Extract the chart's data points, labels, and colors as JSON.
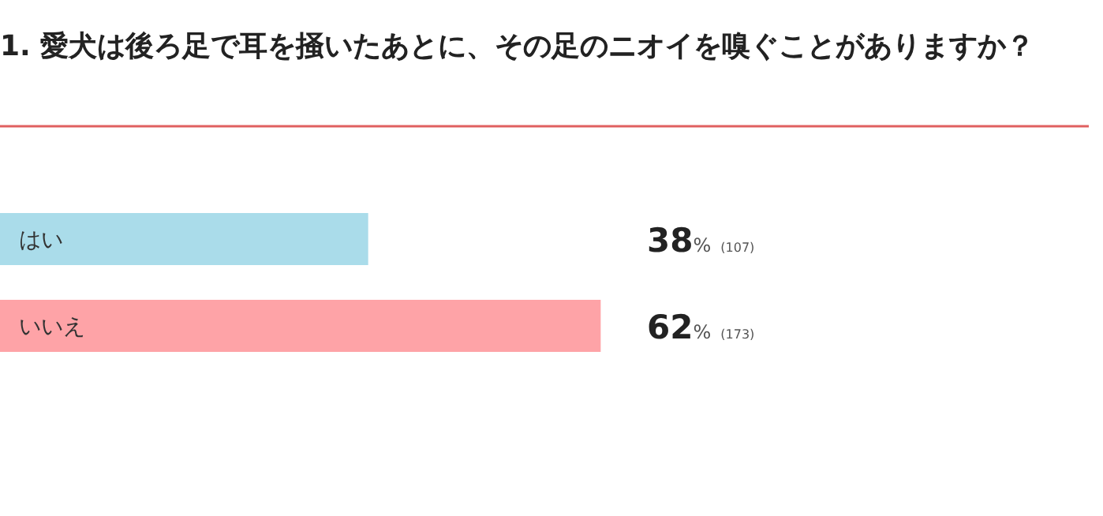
{
  "chart_data": {
    "type": "bar",
    "orientation": "horizontal",
    "title": "1. 愛犬は後ろ足で耳を掻いたあとに、その足のニオイを嗅ぐことがありますか？",
    "categories": [
      "はい",
      "いいえ"
    ],
    "values": [
      38,
      62
    ],
    "colors": [
      "#aadcea",
      "#fea3a7"
    ],
    "value_labels": [
      "38% (107)",
      "62% (173)"
    ]
  }
}
